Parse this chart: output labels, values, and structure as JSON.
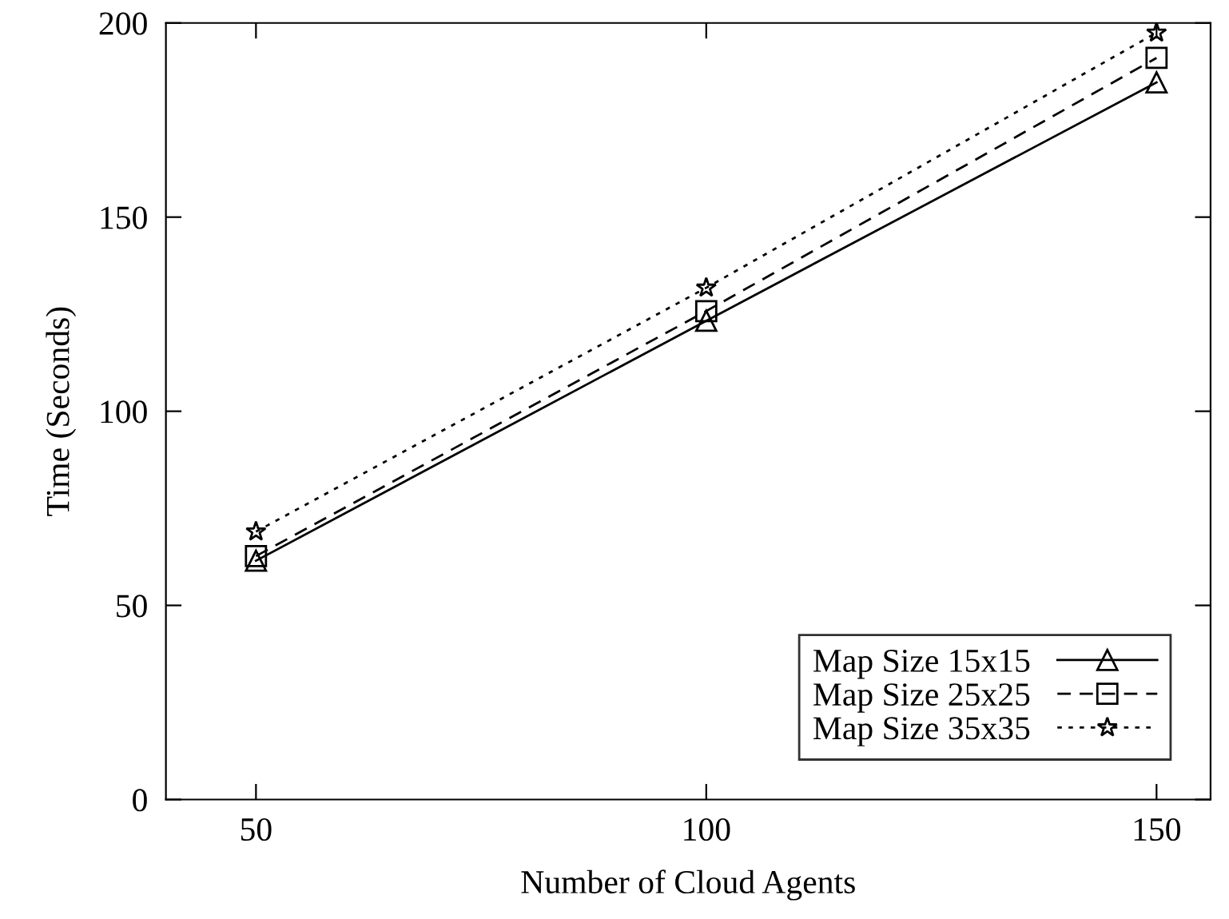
{
  "chart_data": {
    "type": "line",
    "xlabel": "Number of Cloud Agents",
    "ylabel": "Time (Seconds)",
    "x": [
      50,
      100,
      150
    ],
    "series": [
      {
        "name": "Map Size 15x15",
        "color": "#000000",
        "values": [
          61.5,
          123.3,
          184.7
        ],
        "marker": "triangle",
        "line_style": "solid"
      },
      {
        "name": "Map Size 25x25",
        "color": "#000000",
        "values": [
          62.7,
          125.8,
          191
        ],
        "marker": "square",
        "line_style": "dashed"
      },
      {
        "name": "Map Size 35x35",
        "color": "#000000",
        "values": [
          69,
          131.8,
          197.5
        ],
        "marker": "star",
        "line_style": "dotted"
      }
    ],
    "xlim": [
      40,
      156
    ],
    "xticks": [
      50,
      100,
      150
    ],
    "ylim": [
      0,
      200
    ],
    "yticks": [
      0,
      50,
      100,
      150,
      200
    ],
    "grid": false,
    "legend": "bottom right"
  }
}
